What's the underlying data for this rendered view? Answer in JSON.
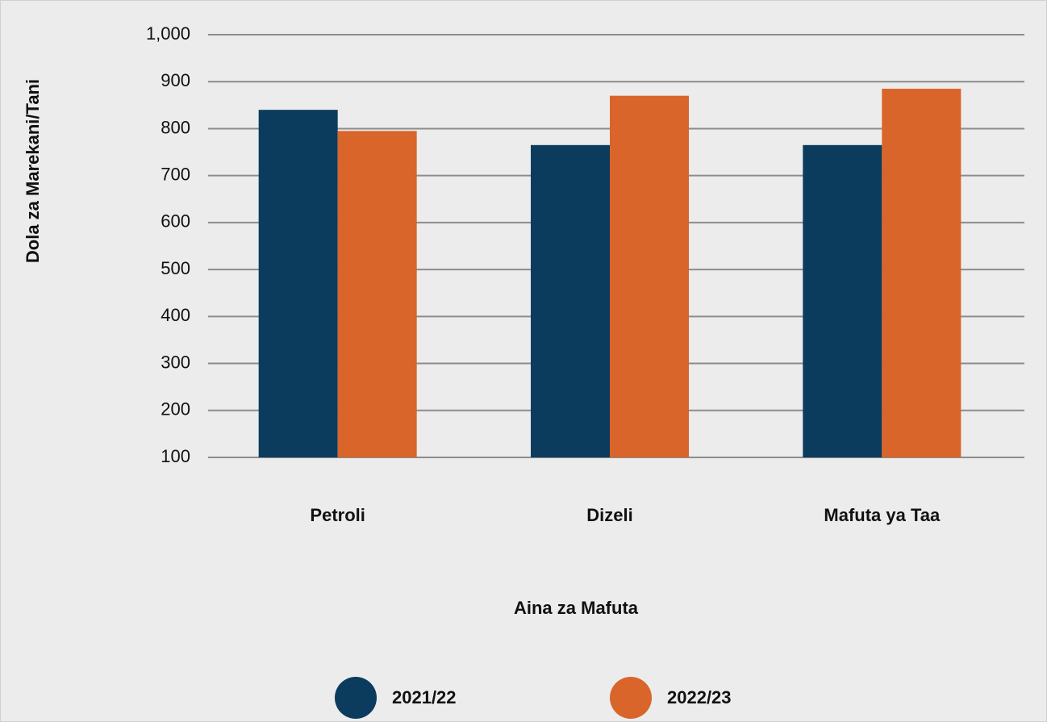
{
  "chart_data": {
    "type": "bar",
    "xlabel": "Aina za Mafuta",
    "ylabel": "Dola za Marekani/Tani",
    "categories": [
      "Petroli",
      "Dizeli",
      "Mafuta ya Taa"
    ],
    "series": [
      {
        "name": "2021/22",
        "color": "#0b3c5d",
        "values": [
          840,
          765,
          765
        ]
      },
      {
        "name": "2022/23",
        "color": "#d9652b",
        "values": [
          795,
          870,
          885
        ]
      }
    ],
    "ylim": [
      100,
      1000
    ],
    "yticks": [
      100,
      200,
      300,
      400,
      500,
      600,
      700,
      800,
      900,
      {
        "value": 1000,
        "label": "1,000"
      }
    ],
    "grid": true
  }
}
